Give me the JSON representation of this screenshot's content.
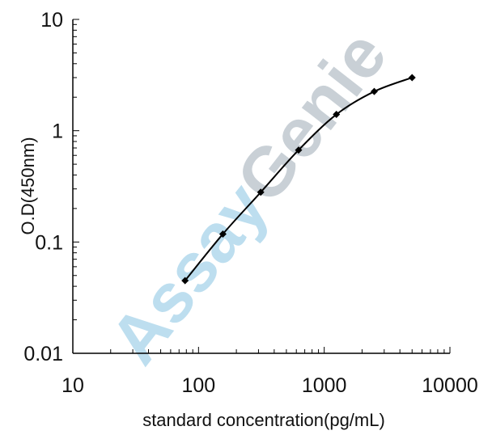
{
  "chart_data": {
    "type": "line",
    "title": "",
    "xlabel": "standard concentration(pg/mL)",
    "ylabel": "O.D(450nm)",
    "x_scale": "log",
    "y_scale": "log",
    "xlim": [
      10,
      10000
    ],
    "ylim": [
      0.01,
      10
    ],
    "x_ticks": [
      "10",
      "100",
      "1000",
      "10000"
    ],
    "y_ticks": [
      "0.01",
      "0.1",
      "1",
      "10"
    ],
    "grid": false,
    "series": [
      {
        "x": [
          78.125,
          156.25,
          312.5,
          625,
          1250,
          2500,
          5000
        ],
        "y": [
          0.045,
          0.118,
          0.28,
          0.67,
          1.4,
          2.25,
          3.0
        ]
      }
    ],
    "watermark": {
      "part1": "Assay",
      "part2": "Genie",
      "color1": "#a8d4ea",
      "color2": "#b7c1c9"
    },
    "colors": {
      "line": "#000000",
      "axis": "#000000"
    }
  }
}
